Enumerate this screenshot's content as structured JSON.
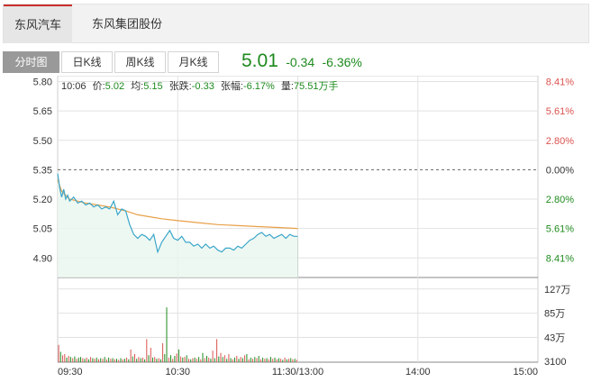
{
  "stock_tabs": [
    {
      "label": "东风汽车",
      "active": true
    },
    {
      "label": "东风集团股份",
      "active": false
    }
  ],
  "view_tabs": [
    {
      "label": "分时图",
      "active": true
    },
    {
      "label": "日K线",
      "active": false
    },
    {
      "label": "周K线",
      "active": false
    },
    {
      "label": "月K线",
      "active": false
    }
  ],
  "quote": {
    "price": "5.01",
    "change": "-0.34",
    "change_pct": "-6.36%"
  },
  "info_bar": {
    "time": "10:06",
    "price_label": "价:",
    "price": "5.02",
    "avg_label": "均:",
    "avg": "5.15",
    "change_label": "张跌:",
    "change": "-0.33",
    "pct_label": "张幅:",
    "pct": "-6.17%",
    "vol_label": "量:",
    "vol": "75.51万手"
  },
  "colors": {
    "up": "#d9534f",
    "down": "#1e8a1e",
    "price_line": "#3aa6c9",
    "avg_line": "#e8a048",
    "accent": "#c9302c"
  },
  "chart_data": {
    "type": "line",
    "prev_close": 5.35,
    "ylim": [
      4.8,
      5.83
    ],
    "y_ticks": [
      5.8,
      5.65,
      5.5,
      5.35,
      5.2,
      5.05,
      4.9
    ],
    "y_tick_labels": [
      "5.80",
      "5.65",
      "5.50",
      "5.35",
      "5.20",
      "5.05",
      "4.90"
    ],
    "pct_tick_labels": [
      "8.41%",
      "5.61%",
      "2.80%",
      "0.00%",
      "2.80%",
      "5.61%",
      "8.41%"
    ],
    "x_tick_labels": [
      "09:30",
      "10:30",
      "11:30/13:00",
      "14:00",
      "15:00"
    ],
    "x_ticks_minutes": [
      0,
      60,
      120,
      180,
      240
    ],
    "total_minutes": 240,
    "series": [
      {
        "key": "price",
        "x": [
          0,
          1,
          2,
          3,
          4,
          5,
          6,
          8,
          10,
          12,
          14,
          16,
          18,
          20,
          22,
          24,
          26,
          28,
          30,
          32,
          34,
          36,
          38,
          40,
          42,
          44,
          46,
          48,
          50,
          52,
          54,
          56,
          58,
          60,
          62,
          64,
          66,
          68,
          70,
          72,
          74,
          76,
          78,
          80,
          82,
          84,
          86,
          88,
          90,
          92,
          94,
          96,
          98,
          100,
          102,
          104,
          106,
          108,
          110,
          112,
          114,
          116,
          118,
          120
        ],
        "values": [
          5.33,
          5.26,
          5.21,
          5.25,
          5.2,
          5.22,
          5.19,
          5.21,
          5.18,
          5.19,
          5.17,
          5.18,
          5.16,
          5.17,
          5.15,
          5.16,
          5.15,
          5.19,
          5.12,
          5.15,
          5.14,
          5.07,
          5.02,
          5.0,
          5.02,
          5.01,
          4.99,
          5.02,
          4.93,
          4.98,
          5.01,
          5.04,
          5.0,
          4.99,
          5.01,
          4.98,
          4.98,
          4.96,
          4.97,
          4.95,
          4.97,
          4.95,
          4.96,
          4.94,
          4.93,
          4.95,
          4.95,
          4.94,
          4.96,
          4.95,
          4.97,
          4.99,
          5.0,
          5.02,
          5.03,
          5.01,
          5.02,
          5.0,
          5.01,
          5.02,
          5.0,
          5.02,
          5.01,
          5.01
        ]
      },
      {
        "key": "avg",
        "x": [
          0,
          2,
          4,
          6,
          10,
          14,
          20,
          26,
          30,
          34,
          40,
          46,
          52,
          60,
          70,
          80,
          90,
          100,
          110,
          120
        ],
        "values": [
          5.3,
          5.24,
          5.22,
          5.2,
          5.19,
          5.18,
          5.17,
          5.16,
          5.15,
          5.14,
          5.12,
          5.11,
          5.1,
          5.09,
          5.08,
          5.07,
          5.065,
          5.06,
          5.055,
          5.05
        ]
      }
    ],
    "volume": {
      "y_tick_labels": [
        "127万",
        "85万",
        "43万",
        "3100"
      ],
      "y_tick_values": [
        127,
        85,
        43,
        0
      ],
      "ylim": [
        0,
        147
      ],
      "values": [
        30,
        18,
        12,
        14,
        8,
        11,
        9,
        7,
        10,
        6,
        8,
        9,
        7,
        6,
        8,
        5,
        9,
        7,
        6,
        8,
        5,
        7,
        6,
        9,
        5,
        8,
        6,
        7,
        5,
        6,
        4,
        7,
        5,
        6,
        8,
        5,
        22,
        10,
        14,
        6,
        9,
        7,
        8,
        5,
        40,
        12,
        25,
        8,
        9,
        6,
        7,
        5,
        33,
        14,
        95,
        8,
        12,
        6,
        11,
        15,
        22,
        10,
        8,
        9,
        12,
        6,
        5,
        7,
        8,
        6,
        9,
        5,
        16,
        7,
        11,
        8,
        6,
        20,
        7,
        40,
        10,
        16,
        9,
        12,
        6,
        14,
        7,
        5,
        8,
        11,
        6,
        9,
        7,
        12,
        14,
        5,
        8,
        6,
        9,
        7,
        11,
        5,
        8,
        6,
        7,
        5,
        9,
        6,
        8,
        5,
        7,
        6,
        4,
        8,
        5,
        6,
        7,
        5,
        6,
        4
      ],
      "colors": [
        "up",
        "down",
        "up",
        "up",
        "down",
        "up",
        "down",
        "up",
        "down",
        "up",
        "down",
        "down",
        "up",
        "down",
        "up",
        "down",
        "up",
        "down",
        "up",
        "down",
        "up",
        "down",
        "up",
        "down",
        "up",
        "down",
        "up",
        "down",
        "up",
        "down",
        "up",
        "down",
        "up",
        "down",
        "up",
        "down",
        "up",
        "down",
        "up",
        "down",
        "up",
        "down",
        "up",
        "down",
        "up",
        "down",
        "up",
        "down",
        "up",
        "down",
        "up",
        "down",
        "up",
        "down",
        "down",
        "up",
        "down",
        "up",
        "down",
        "up",
        "down",
        "up",
        "down",
        "up",
        "down",
        "up",
        "down",
        "up",
        "down",
        "up",
        "down",
        "up",
        "down",
        "up",
        "down",
        "up",
        "down",
        "up",
        "down",
        "up",
        "down",
        "up",
        "down",
        "up",
        "down",
        "up",
        "down",
        "up",
        "down",
        "up",
        "down",
        "up",
        "down",
        "up",
        "down",
        "up",
        "down",
        "up",
        "down",
        "up",
        "down",
        "up",
        "down",
        "up",
        "down",
        "up",
        "down",
        "up",
        "down",
        "up",
        "down",
        "up",
        "down",
        "up",
        "down",
        "up",
        "down",
        "up",
        "down",
        "up",
        "down",
        "up"
      ]
    }
  }
}
